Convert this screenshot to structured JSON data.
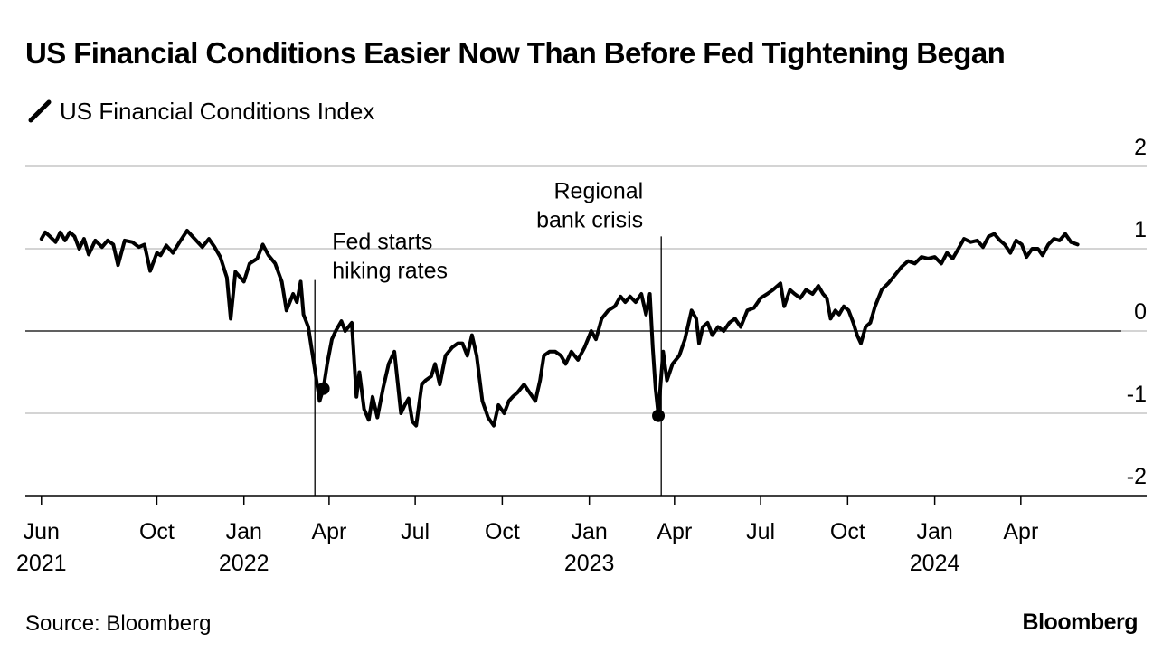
{
  "title": "US Financial Conditions Easier Now Than Before Fed Tightening Began",
  "legend": {
    "label": "US Financial Conditions Index",
    "color": "#000000"
  },
  "source": "Source: Bloomberg",
  "brand": "Bloomberg",
  "chart_data": {
    "type": "line",
    "title": "US Financial Conditions Easier Now Than Before Fed Tightening Began",
    "xlabel": "",
    "ylabel": "",
    "ylim": [
      -2,
      2
    ],
    "yticks": [
      "2",
      "1",
      "0",
      "-1",
      "-2"
    ],
    "xlim": [
      "2021-05-15",
      "2024-08-12"
    ],
    "xticks": [
      {
        "date": "2021-06-01",
        "label": "Jun",
        "year": "2021"
      },
      {
        "date": "2021-10-01",
        "label": "Oct",
        "year": ""
      },
      {
        "date": "2022-01-01",
        "label": "Jan",
        "year": "2022"
      },
      {
        "date": "2022-04-01",
        "label": "Apr",
        "year": ""
      },
      {
        "date": "2022-07-01",
        "label": "Jul",
        "year": ""
      },
      {
        "date": "2022-10-01",
        "label": "Oct",
        "year": ""
      },
      {
        "date": "2023-01-01",
        "label": "Jan",
        "year": "2023"
      },
      {
        "date": "2023-04-01",
        "label": "Apr",
        "year": ""
      },
      {
        "date": "2023-07-01",
        "label": "Jul",
        "year": ""
      },
      {
        "date": "2023-10-01",
        "label": "Oct",
        "year": ""
      },
      {
        "date": "2024-01-01",
        "label": "Jan",
        "year": "2024"
      },
      {
        "date": "2024-04-01",
        "label": "Apr",
        "year": ""
      }
    ],
    "grid": true,
    "legend_position": "top-left",
    "series": [
      {
        "name": "US Financial Conditions Index",
        "color": "#000000",
        "points": [
          [
            "2021-06-01",
            1.12
          ],
          [
            "2021-06-05",
            1.2
          ],
          [
            "2021-06-10",
            1.15
          ],
          [
            "2021-06-16",
            1.08
          ],
          [
            "2021-06-21",
            1.2
          ],
          [
            "2021-06-26",
            1.1
          ],
          [
            "2021-07-01",
            1.2
          ],
          [
            "2021-07-06",
            1.15
          ],
          [
            "2021-07-11",
            1.0
          ],
          [
            "2021-07-16",
            1.12
          ],
          [
            "2021-07-21",
            0.93
          ],
          [
            "2021-07-28",
            1.1
          ],
          [
            "2021-08-04",
            1.02
          ],
          [
            "2021-08-10",
            1.1
          ],
          [
            "2021-08-16",
            1.05
          ],
          [
            "2021-08-21",
            0.8
          ],
          [
            "2021-08-28",
            1.1
          ],
          [
            "2021-09-05",
            1.08
          ],
          [
            "2021-09-12",
            1.02
          ],
          [
            "2021-09-18",
            1.05
          ],
          [
            "2021-09-24",
            0.73
          ],
          [
            "2021-10-01",
            0.95
          ],
          [
            "2021-10-05",
            0.92
          ],
          [
            "2021-10-11",
            1.04
          ],
          [
            "2021-10-18",
            0.95
          ],
          [
            "2021-10-25",
            1.08
          ],
          [
            "2021-11-02",
            1.22
          ],
          [
            "2021-11-10",
            1.12
          ],
          [
            "2021-11-18",
            1.02
          ],
          [
            "2021-11-25",
            1.12
          ],
          [
            "2021-12-01",
            1.02
          ],
          [
            "2021-12-07",
            0.9
          ],
          [
            "2021-12-14",
            0.65
          ],
          [
            "2021-12-18",
            0.15
          ],
          [
            "2021-12-23",
            0.72
          ],
          [
            "2022-01-01",
            0.6
          ],
          [
            "2022-01-07",
            0.82
          ],
          [
            "2022-01-15",
            0.88
          ],
          [
            "2022-01-21",
            1.05
          ],
          [
            "2022-01-27",
            0.92
          ],
          [
            "2022-02-03",
            0.82
          ],
          [
            "2022-02-10",
            0.6
          ],
          [
            "2022-02-15",
            0.25
          ],
          [
            "2022-02-22",
            0.45
          ],
          [
            "2022-02-26",
            0.35
          ],
          [
            "2022-03-02",
            0.6
          ],
          [
            "2022-03-05",
            0.2
          ],
          [
            "2022-03-10",
            0.05
          ],
          [
            "2022-03-16",
            -0.4
          ],
          [
            "2022-03-22",
            -0.85
          ],
          [
            "2022-03-26",
            -0.7
          ],
          [
            "2022-03-30",
            -0.4
          ],
          [
            "2022-04-04",
            -0.1
          ],
          [
            "2022-04-08",
            0.0
          ],
          [
            "2022-04-14",
            0.12
          ],
          [
            "2022-04-18",
            0.0
          ],
          [
            "2022-04-25",
            0.1
          ],
          [
            "2022-04-30",
            -0.8
          ],
          [
            "2022-05-03",
            -0.5
          ],
          [
            "2022-05-08",
            -0.95
          ],
          [
            "2022-05-13",
            -1.08
          ],
          [
            "2022-05-17",
            -0.8
          ],
          [
            "2022-05-22",
            -1.05
          ],
          [
            "2022-05-28",
            -0.7
          ],
          [
            "2022-06-03",
            -0.4
          ],
          [
            "2022-06-09",
            -0.25
          ],
          [
            "2022-06-16",
            -1.0
          ],
          [
            "2022-06-20",
            -0.9
          ],
          [
            "2022-06-24",
            -0.82
          ],
          [
            "2022-06-28",
            -1.1
          ],
          [
            "2022-07-02",
            -1.15
          ],
          [
            "2022-07-08",
            -0.65
          ],
          [
            "2022-07-12",
            -0.6
          ],
          [
            "2022-07-18",
            -0.55
          ],
          [
            "2022-07-22",
            -0.4
          ],
          [
            "2022-07-27",
            -0.65
          ],
          [
            "2022-08-02",
            -0.3
          ],
          [
            "2022-08-09",
            -0.2
          ],
          [
            "2022-08-15",
            -0.15
          ],
          [
            "2022-08-20",
            -0.15
          ],
          [
            "2022-08-25",
            -0.3
          ],
          [
            "2022-08-30",
            -0.05
          ],
          [
            "2022-09-04",
            -0.3
          ],
          [
            "2022-09-10",
            -0.85
          ],
          [
            "2022-09-16",
            -1.05
          ],
          [
            "2022-09-22",
            -1.15
          ],
          [
            "2022-09-27",
            -0.9
          ],
          [
            "2022-10-03",
            -1.0
          ],
          [
            "2022-10-08",
            -0.85
          ],
          [
            "2022-10-12",
            -0.8
          ],
          [
            "2022-10-17",
            -0.75
          ],
          [
            "2022-10-24",
            -0.65
          ],
          [
            "2022-10-30",
            -0.75
          ],
          [
            "2022-11-05",
            -0.85
          ],
          [
            "2022-11-10",
            -0.6
          ],
          [
            "2022-11-14",
            -0.3
          ],
          [
            "2022-11-20",
            -0.25
          ],
          [
            "2022-11-26",
            -0.25
          ],
          [
            "2022-12-02",
            -0.3
          ],
          [
            "2022-12-07",
            -0.4
          ],
          [
            "2022-12-13",
            -0.25
          ],
          [
            "2022-12-20",
            -0.35
          ],
          [
            "2022-12-27",
            -0.2
          ],
          [
            "2023-01-03",
            0.0
          ],
          [
            "2023-01-08",
            -0.1
          ],
          [
            "2023-01-14",
            0.15
          ],
          [
            "2023-01-21",
            0.25
          ],
          [
            "2023-01-28",
            0.3
          ],
          [
            "2023-02-03",
            0.42
          ],
          [
            "2023-02-08",
            0.35
          ],
          [
            "2023-02-13",
            0.42
          ],
          [
            "2023-02-19",
            0.35
          ],
          [
            "2023-02-25",
            0.45
          ],
          [
            "2023-03-02",
            0.2
          ],
          [
            "2023-03-06",
            0.45
          ],
          [
            "2023-03-09",
            -0.2
          ],
          [
            "2023-03-12",
            -0.7
          ],
          [
            "2023-03-15",
            -1.03
          ],
          [
            "2023-03-17",
            -0.7
          ],
          [
            "2023-03-20",
            -0.25
          ],
          [
            "2023-03-24",
            -0.6
          ],
          [
            "2023-03-30",
            -0.4
          ],
          [
            "2023-04-06",
            -0.3
          ],
          [
            "2023-04-12",
            -0.1
          ],
          [
            "2023-04-19",
            0.25
          ],
          [
            "2023-04-24",
            0.15
          ],
          [
            "2023-04-27",
            -0.15
          ],
          [
            "2023-05-01",
            0.05
          ],
          [
            "2023-05-06",
            0.1
          ],
          [
            "2023-05-11",
            -0.05
          ],
          [
            "2023-05-17",
            0.05
          ],
          [
            "2023-05-23",
            0.0
          ],
          [
            "2023-05-29",
            0.1
          ],
          [
            "2023-06-04",
            0.15
          ],
          [
            "2023-06-10",
            0.05
          ],
          [
            "2023-06-17",
            0.25
          ],
          [
            "2023-06-24",
            0.28
          ],
          [
            "2023-07-01",
            0.4
          ],
          [
            "2023-07-08",
            0.45
          ],
          [
            "2023-07-14",
            0.5
          ],
          [
            "2023-07-22",
            0.58
          ],
          [
            "2023-07-26",
            0.3
          ],
          [
            "2023-08-01",
            0.5
          ],
          [
            "2023-08-06",
            0.45
          ],
          [
            "2023-08-12",
            0.4
          ],
          [
            "2023-08-18",
            0.5
          ],
          [
            "2023-08-25",
            0.45
          ],
          [
            "2023-08-31",
            0.55
          ],
          [
            "2023-09-05",
            0.45
          ],
          [
            "2023-09-09",
            0.4
          ],
          [
            "2023-09-13",
            0.15
          ],
          [
            "2023-09-18",
            0.25
          ],
          [
            "2023-09-22",
            0.2
          ],
          [
            "2023-09-27",
            0.3
          ],
          [
            "2023-10-02",
            0.25
          ],
          [
            "2023-10-07",
            0.1
          ],
          [
            "2023-10-11",
            -0.05
          ],
          [
            "2023-10-15",
            -0.15
          ],
          [
            "2023-10-20",
            0.05
          ],
          [
            "2023-10-25",
            0.1
          ],
          [
            "2023-10-30",
            0.3
          ],
          [
            "2023-11-06",
            0.5
          ],
          [
            "2023-11-13",
            0.58
          ],
          [
            "2023-11-20",
            0.68
          ],
          [
            "2023-11-27",
            0.78
          ],
          [
            "2023-12-04",
            0.85
          ],
          [
            "2023-12-11",
            0.82
          ],
          [
            "2023-12-18",
            0.9
          ],
          [
            "2023-12-25",
            0.88
          ],
          [
            "2024-01-01",
            0.9
          ],
          [
            "2024-01-08",
            0.82
          ],
          [
            "2024-01-14",
            0.95
          ],
          [
            "2024-01-20",
            0.88
          ],
          [
            "2024-01-26",
            1.0
          ],
          [
            "2024-02-01",
            1.12
          ],
          [
            "2024-02-08",
            1.08
          ],
          [
            "2024-02-15",
            1.1
          ],
          [
            "2024-02-21",
            1.02
          ],
          [
            "2024-02-27",
            1.15
          ],
          [
            "2024-03-04",
            1.18
          ],
          [
            "2024-03-10",
            1.1
          ],
          [
            "2024-03-15",
            1.05
          ],
          [
            "2024-03-21",
            0.95
          ],
          [
            "2024-03-27",
            1.1
          ],
          [
            "2024-04-02",
            1.05
          ],
          [
            "2024-04-07",
            0.9
          ],
          [
            "2024-04-13",
            1.0
          ],
          [
            "2024-04-19",
            1.0
          ],
          [
            "2024-04-24",
            0.92
          ],
          [
            "2024-04-30",
            1.05
          ],
          [
            "2024-05-06",
            1.12
          ],
          [
            "2024-05-12",
            1.1
          ],
          [
            "2024-05-18",
            1.18
          ],
          [
            "2024-05-24",
            1.08
          ],
          [
            "2024-05-31",
            1.05
          ]
        ]
      }
    ],
    "markers": [
      {
        "date": "2022-03-26",
        "value": -0.7
      },
      {
        "date": "2023-03-15",
        "value": -1.03
      }
    ],
    "annotations": [
      {
        "date": "2022-03-17",
        "lines": [
          "Fed starts",
          "hiking rates"
        ],
        "top_value": 0.62
      },
      {
        "date": "2023-03-18",
        "lines": [
          "Regional",
          "bank crisis"
        ],
        "top_value": 1.15
      }
    ]
  }
}
